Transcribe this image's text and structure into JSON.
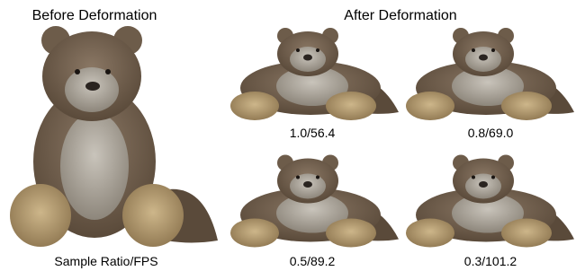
{
  "before": {
    "title": "Before Deformation",
    "caption": "Sample Ratio/FPS"
  },
  "after": {
    "title": "After Deformation",
    "images": [
      {
        "label": "1.0/56.4"
      },
      {
        "label": "0.8/69.0"
      },
      {
        "label": "0.5/89.2"
      },
      {
        "label": "0.3/101.2"
      }
    ]
  }
}
